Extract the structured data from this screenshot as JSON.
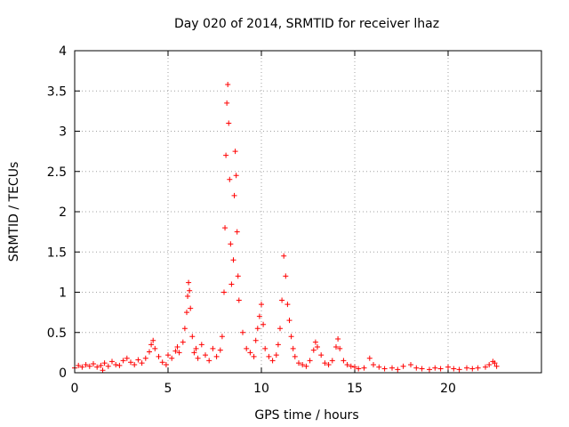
{
  "chart_data": {
    "type": "scatter",
    "title": "Day 020 of 2014, SRMTID for receiver lhaz",
    "xlabel": "GPS time / hours",
    "ylabel": "SRMTID / TECUs",
    "xlim": [
      0,
      25
    ],
    "ylim": [
      0,
      4
    ],
    "xticks": [
      0,
      5,
      10,
      15,
      20
    ],
    "yticks": [
      0,
      0.5,
      1,
      1.5,
      2,
      2.5,
      3,
      3.5,
      4
    ],
    "xtick_labels": [
      "0",
      "5",
      "10",
      "15",
      "20"
    ],
    "ytick_labels": [
      "0",
      "0.5",
      "1",
      "1.5",
      "2",
      "2.5",
      "3",
      "3.5",
      "4"
    ],
    "grid": true,
    "marker": "+",
    "color": "#ff0000",
    "series": [
      {
        "name": "SRMTID",
        "points": [
          [
            0.0,
            0.06
          ],
          [
            0.2,
            0.09
          ],
          [
            0.4,
            0.07
          ],
          [
            0.6,
            0.1
          ],
          [
            0.8,
            0.08
          ],
          [
            1.0,
            0.11
          ],
          [
            1.2,
            0.07
          ],
          [
            1.4,
            0.09
          ],
          [
            1.5,
            0.03
          ],
          [
            1.6,
            0.12
          ],
          [
            1.8,
            0.08
          ],
          [
            2.0,
            0.14
          ],
          [
            2.2,
            0.1
          ],
          [
            2.4,
            0.09
          ],
          [
            2.6,
            0.15
          ],
          [
            2.8,
            0.18
          ],
          [
            3.0,
            0.13
          ],
          [
            3.2,
            0.1
          ],
          [
            3.4,
            0.16
          ],
          [
            3.6,
            0.12
          ],
          [
            3.8,
            0.18
          ],
          [
            4.0,
            0.26
          ],
          [
            4.1,
            0.35
          ],
          [
            4.2,
            0.4
          ],
          [
            4.3,
            0.3
          ],
          [
            4.5,
            0.2
          ],
          [
            4.7,
            0.13
          ],
          [
            4.9,
            0.1
          ],
          [
            5.0,
            0.22
          ],
          [
            5.2,
            0.18
          ],
          [
            5.4,
            0.27
          ],
          [
            5.5,
            0.32
          ],
          [
            5.6,
            0.25
          ],
          [
            5.8,
            0.38
          ],
          [
            5.9,
            0.55
          ],
          [
            6.0,
            0.75
          ],
          [
            6.05,
            0.95
          ],
          [
            6.1,
            1.12
          ],
          [
            6.15,
            1.02
          ],
          [
            6.2,
            0.8
          ],
          [
            6.3,
            0.45
          ],
          [
            6.4,
            0.25
          ],
          [
            6.5,
            0.3
          ],
          [
            6.6,
            0.18
          ],
          [
            6.8,
            0.35
          ],
          [
            7.0,
            0.22
          ],
          [
            7.2,
            0.15
          ],
          [
            7.4,
            0.3
          ],
          [
            7.6,
            0.2
          ],
          [
            7.8,
            0.28
          ],
          [
            7.9,
            0.45
          ],
          [
            8.0,
            1.0
          ],
          [
            8.05,
            1.8
          ],
          [
            8.1,
            2.7
          ],
          [
            8.15,
            3.35
          ],
          [
            8.2,
            3.58
          ],
          [
            8.25,
            3.1
          ],
          [
            8.3,
            2.4
          ],
          [
            8.35,
            1.6
          ],
          [
            8.4,
            1.1
          ],
          [
            8.5,
            1.4
          ],
          [
            8.55,
            2.2
          ],
          [
            8.6,
            2.75
          ],
          [
            8.65,
            2.45
          ],
          [
            8.7,
            1.75
          ],
          [
            8.75,
            1.2
          ],
          [
            8.8,
            0.9
          ],
          [
            9.0,
            0.5
          ],
          [
            9.2,
            0.3
          ],
          [
            9.4,
            0.25
          ],
          [
            9.6,
            0.2
          ],
          [
            9.7,
            0.4
          ],
          [
            9.8,
            0.55
          ],
          [
            9.9,
            0.7
          ],
          [
            10.0,
            0.85
          ],
          [
            10.1,
            0.6
          ],
          [
            10.2,
            0.3
          ],
          [
            10.4,
            0.2
          ],
          [
            10.6,
            0.15
          ],
          [
            10.8,
            0.22
          ],
          [
            10.9,
            0.35
          ],
          [
            11.0,
            0.55
          ],
          [
            11.1,
            0.9
          ],
          [
            11.2,
            1.45
          ],
          [
            11.3,
            1.2
          ],
          [
            11.4,
            0.85
          ],
          [
            11.5,
            0.65
          ],
          [
            11.6,
            0.45
          ],
          [
            11.7,
            0.3
          ],
          [
            11.8,
            0.2
          ],
          [
            12.0,
            0.12
          ],
          [
            12.2,
            0.1
          ],
          [
            12.4,
            0.08
          ],
          [
            12.6,
            0.15
          ],
          [
            12.8,
            0.28
          ],
          [
            12.9,
            0.38
          ],
          [
            13.0,
            0.32
          ],
          [
            13.2,
            0.22
          ],
          [
            13.4,
            0.12
          ],
          [
            13.6,
            0.1
          ],
          [
            13.8,
            0.15
          ],
          [
            14.0,
            0.32
          ],
          [
            14.1,
            0.42
          ],
          [
            14.2,
            0.3
          ],
          [
            14.4,
            0.15
          ],
          [
            14.6,
            0.1
          ],
          [
            14.8,
            0.08
          ],
          [
            15.0,
            0.07
          ],
          [
            15.2,
            0.05
          ],
          [
            15.5,
            0.06
          ],
          [
            15.8,
            0.18
          ],
          [
            16.0,
            0.1
          ],
          [
            16.3,
            0.07
          ],
          [
            16.6,
            0.05
          ],
          [
            17.0,
            0.06
          ],
          [
            17.3,
            0.04
          ],
          [
            17.6,
            0.08
          ],
          [
            18.0,
            0.1
          ],
          [
            18.3,
            0.06
          ],
          [
            18.6,
            0.05
          ],
          [
            19.0,
            0.04
          ],
          [
            19.3,
            0.06
          ],
          [
            19.6,
            0.05
          ],
          [
            20.0,
            0.07
          ],
          [
            20.3,
            0.05
          ],
          [
            20.6,
            0.04
          ],
          [
            21.0,
            0.06
          ],
          [
            21.3,
            0.05
          ],
          [
            21.6,
            0.06
          ],
          [
            22.0,
            0.07
          ],
          [
            22.2,
            0.1
          ],
          [
            22.4,
            0.14
          ],
          [
            22.5,
            0.12
          ],
          [
            22.6,
            0.08
          ]
        ]
      }
    ]
  }
}
